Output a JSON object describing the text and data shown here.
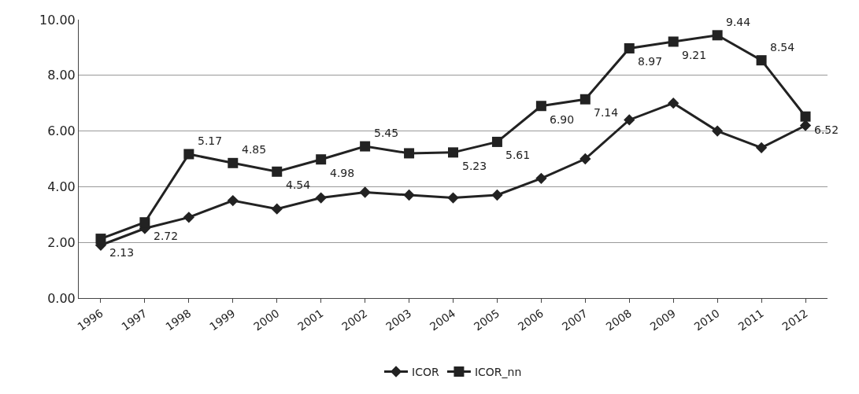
{
  "chart_data": {
    "type": "line",
    "categories": [
      "1996",
      "1997",
      "1998",
      "1999",
      "2000",
      "2001",
      "2002",
      "2003",
      "2004",
      "2005",
      "2006",
      "2007",
      "2008",
      "2009",
      "2010",
      "2011",
      "2012"
    ],
    "series": [
      {
        "name": "ICOR",
        "color": "#222222",
        "marker": "diamond",
        "values": [
          1.9,
          2.5,
          2.9,
          3.5,
          3.2,
          3.6,
          3.8,
          3.7,
          3.6,
          3.7,
          4.3,
          5.0,
          6.4,
          7.0,
          6.0,
          5.4,
          6.2
        ]
      },
      {
        "name": "ICOR_nn",
        "color": "#222222",
        "marker": "square",
        "values": [
          2.13,
          2.72,
          5.17,
          4.85,
          4.54,
          4.98,
          5.45,
          5.2,
          5.23,
          5.61,
          6.9,
          7.14,
          8.97,
          9.21,
          9.44,
          8.54,
          6.52
        ],
        "value_labels": [
          "2.13",
          "2.72",
          "5.17",
          "4.85",
          "4.54",
          "4.98",
          "5.45",
          null,
          "5.23",
          "5.61",
          "6.90",
          "7.14",
          "8.97",
          "9.21",
          "9.44",
          "8.54",
          "6.52"
        ]
      }
    ],
    "ylim": [
      0,
      10
    ],
    "yticks": [
      {
        "value": 0,
        "label": "0.00"
      },
      {
        "value": 2,
        "label": "2.00"
      },
      {
        "value": 4,
        "label": "4.00"
      },
      {
        "value": 6,
        "label": "6.00"
      },
      {
        "value": 8,
        "label": "8.00"
      },
      {
        "value": 10,
        "label": "10.00"
      }
    ],
    "grid": "y",
    "legend": "bottom",
    "line_style": "solid"
  }
}
